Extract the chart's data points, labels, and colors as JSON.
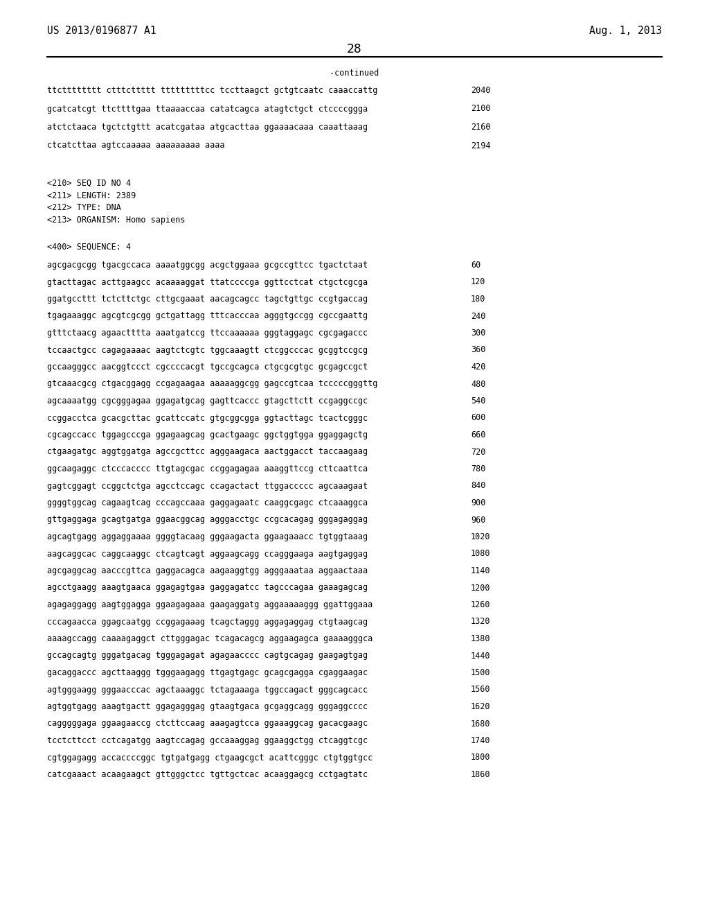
{
  "patent_number": "US 2013/0196877 A1",
  "date": "Aug. 1, 2013",
  "page_number": "28",
  "continued_label": "-continued",
  "background_color": "#ffffff",
  "text_color": "#000000",
  "font_size": 8.5,
  "header_font_size": 10.5,
  "page_num_font_size": 13,
  "top_lines": [
    [
      "ttctttttttt ctttcttttt tttttttttcc tccttaagct gctgtcaatc caaaccattg",
      "2040"
    ],
    [
      "gcatcatcgt ttcttttgaa ttaaaaccaa catatcagca atagtctgct ctccccggga",
      "2100"
    ],
    [
      "atctctaaca tgctctgttt acatcgataa atgcacttaa ggaaaacaaa caaattaaag",
      "2160"
    ],
    [
      "ctcatcttaa agtccaaaaa aaaaaaaaa aaaa",
      "2194"
    ]
  ],
  "metadata_lines": [
    "<210> SEQ ID NO 4",
    "<211> LENGTH: 2389",
    "<212> TYPE: DNA",
    "<213> ORGANISM: Homo sapiens"
  ],
  "sequence_label": "<400> SEQUENCE: 4",
  "sequence_lines": [
    [
      "agcgacgcgg tgacgccaca aaaatggcgg acgctggaaa gcgccgttcc tgactctaat",
      "60"
    ],
    [
      "gtacttagac acttgaagcc acaaaaggat ttatccccga ggttcctcat ctgctcgcga",
      "120"
    ],
    [
      "ggatgccttt tctcttctgc cttgcgaaat aacagcagcc tagctgttgc ccgtgaccag",
      "180"
    ],
    [
      "tgagaaaggc agcgtcgcgg gctgattagg tttcacccaa agggtgccgg cgccgaattg",
      "240"
    ],
    [
      "gtttctaacg agaactttta aaatgatccg ttccaaaaaa gggtaggagc cgcgagaccc",
      "300"
    ],
    [
      "tccaactgcc cagagaaaac aagtctcgtc tggcaaagtt ctcggcccac gcggtccgcg",
      "360"
    ],
    [
      "gccaagggcc aacggtccct cgccccacgt tgccgcagca ctgcgcgtgc gcgagccgct",
      "420"
    ],
    [
      "gtcaaacgcg ctgacggagg ccgagaagaa aaaaaggcgg gagccgtcaa tcccccgggttg",
      "480"
    ],
    [
      "agcaaaatgg cgcgggagaa ggagatgcag gagttcaccc gtagcttctt ccgaggccgc",
      "540"
    ],
    [
      "ccggacctca gcacgcttac gcattccatc gtgcggcgga ggtacttagc tcactcgggc",
      "600"
    ],
    [
      "cgcagccacc tggagcccga ggagaagcag gcactgaagc ggctggtgga ggaggagctg",
      "660"
    ],
    [
      "ctgaagatgc aggtggatga agccgcttcc agggaagaca aactggacct taccaagaag",
      "720"
    ],
    [
      "ggcaagaggc ctcccacccc ttgtagcgac ccggagagaa aaaggttccg cttcaattca",
      "780"
    ],
    [
      "gagtcggagt ccggctctga agcctccagc ccagactact ttggaccccc agcaaagaat",
      "840"
    ],
    [
      "ggggtggcag cagaagtcag cccagccaaa gaggagaatc caaggcgagc ctcaaaggca",
      "900"
    ],
    [
      "gttgaggaga gcagtgatga ggaacggcag agggacctgc ccgcacagag gggagaggag",
      "960"
    ],
    [
      "agcagtgagg aggaggaaaa ggggtacaag gggaagacta ggaagaaacc tgtggtaaag",
      "1020"
    ],
    [
      "aagcaggcac caggcaaggc ctcagtcagt aggaagcagg ccagggaaga aagtgaggag",
      "1080"
    ],
    [
      "agcgaggcag aacccgttca gaggacagca aagaaggtgg agggaaataa aggaactaaa",
      "1140"
    ],
    [
      "agcctgaagg aaagtgaaca ggagagtgaa gaggagatcc tagcccagaa gaaagagcag",
      "1200"
    ],
    [
      "agagaggagg aagtggagga ggaagagaaa gaagaggatg aggaaaaaggg ggattggaaa",
      "1260"
    ],
    [
      "cccagaacca ggagcaatgg ccggagaaag tcagctaggg aggagaggag ctgtaagcag",
      "1320"
    ],
    [
      "aaaagccagg caaaagaggct cttgggagac tcagacagcg aggaagagca gaaaagggca",
      "1380"
    ],
    [
      "gccagcagtg gggatgacag tgggagagat agagaacccc cagtgcagag gaagagtgag",
      "1440"
    ],
    [
      "gacaggaccc agcttaaggg tgggaagagg ttgagtgagc gcagcgagga cgaggaagac",
      "1500"
    ],
    [
      "agtgggaagg gggaacccac agctaaaggc tctagaaaga tggccagact gggcagcacc",
      "1560"
    ],
    [
      "agtggtgagg aaagtgactt ggagagggag gtaagtgaca gcgaggcagg gggaggcccc",
      "1620"
    ],
    [
      "cagggggaga ggaagaaccg ctcttccaag aaagagtcca ggaaaggcag gacacgaagc",
      "1680"
    ],
    [
      "tcctcttcct cctcagatgg aagtccagag gccaaaggag ggaaggctgg ctcaggtcgc",
      "1740"
    ],
    [
      "cgtggagagg accaccccggc tgtgatgagg ctgaagcgct acattcgggc ctgtggtgcc",
      "1800"
    ],
    [
      "catcgaaact acaagaagct gttgggctcc tgttgctcac acaaggagcg cctgagtatc",
      "1860"
    ]
  ]
}
